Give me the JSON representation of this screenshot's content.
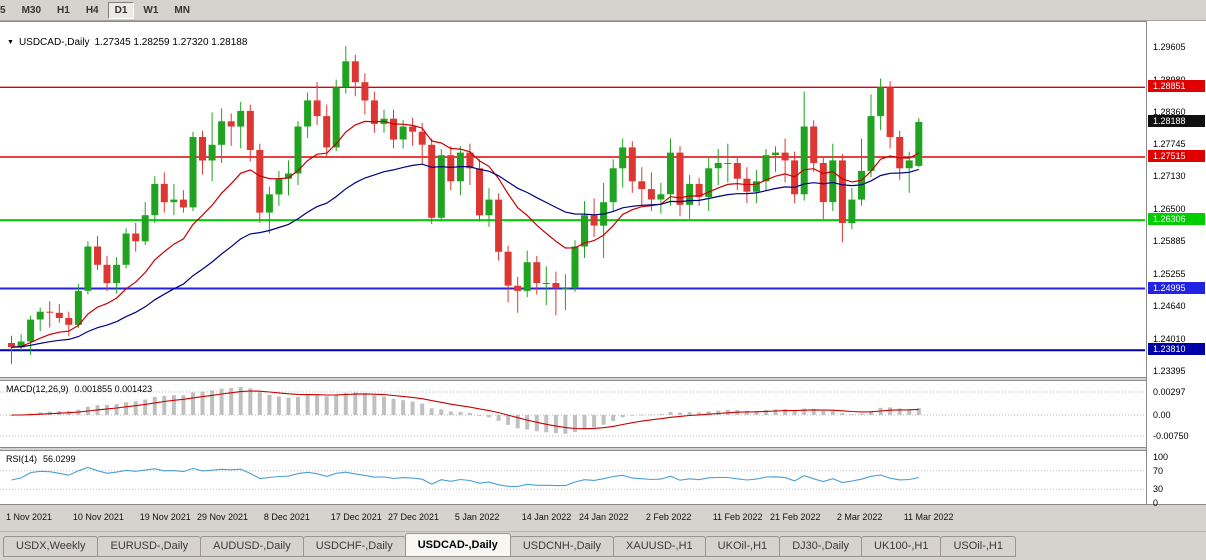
{
  "toolbar": {
    "items": [
      {
        "label": "5",
        "active": false
      },
      {
        "label": "M30",
        "active": false
      },
      {
        "label": "H1",
        "active": false
      },
      {
        "label": "H4",
        "active": false
      },
      {
        "label": "D1",
        "active": true
      },
      {
        "label": "W1",
        "active": false
      },
      {
        "label": "MN",
        "active": false
      }
    ]
  },
  "chart": {
    "symbol_label": "USDCAD-,Daily",
    "ohlc_text": "1.27345 1.28259 1.27320 1.28188"
  },
  "chart_data": {
    "type": "candlestick",
    "symbol": "USDCAD-",
    "timeframe": "Daily",
    "ohlc_display": {
      "open": "1.27345",
      "high": "1.28259",
      "low": "1.27320",
      "close": "1.28188"
    },
    "colors": {
      "bull": "#20a320",
      "bear": "#dc3732",
      "background": "#ffffff"
    },
    "y_axis_ticks": [
      "1.29605",
      "1.28980",
      "1.28360",
      "1.27745",
      "1.27130",
      "1.26500",
      "1.25885",
      "1.25255",
      "1.24640",
      "1.24010",
      "1.23395"
    ],
    "price_lines": [
      {
        "price": 1.28851,
        "label": "1.28851",
        "color": "#e00000",
        "width": 1.4
      },
      {
        "price": 1.27515,
        "label": "1.27515",
        "color": "#e00000",
        "width": 1.4
      },
      {
        "price": 1.26306,
        "label": "1.26306",
        "color": "#00ce00",
        "width": 2
      },
      {
        "price": 1.24995,
        "label": "1.24995",
        "color": "#2323e6",
        "width": 2
      },
      {
        "price": 1.2381,
        "label": "1.23810",
        "color": "#0000a8",
        "width": 2
      }
    ],
    "current_price": {
      "value": 1.28188,
      "label": "1.28188",
      "color": "#101010"
    },
    "moving_averages": {
      "fast": {
        "period": 13,
        "color": "#c80000"
      },
      "slow": {
        "period": 34,
        "color": "#000080"
      }
    },
    "candles": [
      [
        1.2395,
        1.2409,
        1.2355,
        1.2387
      ],
      [
        1.2387,
        1.2412,
        1.2378,
        1.2398
      ],
      [
        1.2398,
        1.2447,
        1.2372,
        1.244
      ],
      [
        1.244,
        1.2463,
        1.2418,
        1.2455
      ],
      [
        1.2455,
        1.2475,
        1.2425,
        1.2453
      ],
      [
        1.2453,
        1.247,
        1.2434,
        1.2443
      ],
      [
        1.2443,
        1.2455,
        1.2408,
        1.243
      ],
      [
        1.243,
        1.2508,
        1.2424,
        1.2495
      ],
      [
        1.2495,
        1.259,
        1.2488,
        1.258
      ],
      [
        1.258,
        1.26,
        1.2535,
        1.2545
      ],
      [
        1.2545,
        1.2562,
        1.2495,
        1.251
      ],
      [
        1.251,
        1.256,
        1.249,
        1.2545
      ],
      [
        1.2545,
        1.2615,
        1.2538,
        1.2605
      ],
      [
        1.2605,
        1.2625,
        1.257,
        1.259
      ],
      [
        1.259,
        1.2665,
        1.2583,
        1.264
      ],
      [
        1.264,
        1.2715,
        1.2625,
        1.27
      ],
      [
        1.27,
        1.2722,
        1.2645,
        1.2665
      ],
      [
        1.2665,
        1.27,
        1.264,
        1.267
      ],
      [
        1.267,
        1.2688,
        1.2645,
        1.2655
      ],
      [
        1.2655,
        1.28,
        1.2648,
        1.279
      ],
      [
        1.279,
        1.2802,
        1.2718,
        1.2745
      ],
      [
        1.2745,
        1.2837,
        1.2705,
        1.2775
      ],
      [
        1.2775,
        1.2845,
        1.274,
        1.282
      ],
      [
        1.282,
        1.2835,
        1.2773,
        1.281
      ],
      [
        1.281,
        1.2857,
        1.2768,
        1.284
      ],
      [
        1.284,
        1.2852,
        1.2743,
        1.2765
      ],
      [
        1.2765,
        1.2777,
        1.2625,
        1.2645
      ],
      [
        1.2645,
        1.2695,
        1.2605,
        1.268
      ],
      [
        1.268,
        1.2725,
        1.2658,
        1.271
      ],
      [
        1.271,
        1.2745,
        1.2678,
        1.272
      ],
      [
        1.272,
        1.282,
        1.2698,
        1.281
      ],
      [
        1.281,
        1.2875,
        1.2788,
        1.286
      ],
      [
        1.286,
        1.2895,
        1.2813,
        1.283
      ],
      [
        1.283,
        1.2852,
        1.2753,
        1.277
      ],
      [
        1.277,
        1.29,
        1.2763,
        1.2885
      ],
      [
        1.2885,
        1.2964,
        1.2873,
        1.2935
      ],
      [
        1.2935,
        1.2947,
        1.2868,
        1.2895
      ],
      [
        1.2895,
        1.2912,
        1.2833,
        1.286
      ],
      [
        1.286,
        1.2877,
        1.2798,
        1.2815
      ],
      [
        1.2815,
        1.2842,
        1.2798,
        1.2825
      ],
      [
        1.2825,
        1.2842,
        1.2768,
        1.2785
      ],
      [
        1.2785,
        1.2822,
        1.2768,
        1.281
      ],
      [
        1.281,
        1.2827,
        1.2773,
        1.28
      ],
      [
        1.28,
        1.2817,
        1.2738,
        1.2775
      ],
      [
        1.2775,
        1.2787,
        1.2623,
        1.2635
      ],
      [
        1.2635,
        1.2767,
        1.2628,
        1.2755
      ],
      [
        1.2755,
        1.2772,
        1.2688,
        1.2705
      ],
      [
        1.2705,
        1.2772,
        1.2678,
        1.276
      ],
      [
        1.276,
        1.2777,
        1.2698,
        1.273
      ],
      [
        1.273,
        1.2747,
        1.2628,
        1.264
      ],
      [
        1.264,
        1.2692,
        1.2618,
        1.267
      ],
      [
        1.267,
        1.2682,
        1.2553,
        1.257
      ],
      [
        1.257,
        1.2582,
        1.2473,
        1.2505
      ],
      [
        1.2505,
        1.2522,
        1.2453,
        1.2495
      ],
      [
        1.2495,
        1.2572,
        1.2483,
        1.255
      ],
      [
        1.255,
        1.2562,
        1.2488,
        1.251
      ],
      [
        1.251,
        1.2542,
        1.2468,
        1.251
      ],
      [
        1.251,
        1.2532,
        1.2448,
        1.25
      ],
      [
        1.25,
        1.2527,
        1.2458,
        1.25
      ],
      [
        1.25,
        1.2592,
        1.2493,
        1.258
      ],
      [
        1.258,
        1.2667,
        1.2558,
        1.264
      ],
      [
        1.264,
        1.2672,
        1.2598,
        1.262
      ],
      [
        1.262,
        1.2702,
        1.2558,
        1.2665
      ],
      [
        1.2665,
        1.2747,
        1.2648,
        1.273
      ],
      [
        1.273,
        1.2787,
        1.2693,
        1.277
      ],
      [
        1.277,
        1.2782,
        1.2683,
        1.2705
      ],
      [
        1.2705,
        1.2732,
        1.2658,
        1.269
      ],
      [
        1.269,
        1.2722,
        1.2648,
        1.267
      ],
      [
        1.267,
        1.2702,
        1.2643,
        1.268
      ],
      [
        1.268,
        1.2787,
        1.2658,
        1.276
      ],
      [
        1.276,
        1.2772,
        1.2638,
        1.266
      ],
      [
        1.266,
        1.2717,
        1.2633,
        1.27
      ],
      [
        1.27,
        1.2712,
        1.2658,
        1.2675
      ],
      [
        1.2675,
        1.2752,
        1.2648,
        1.273
      ],
      [
        1.273,
        1.2767,
        1.2698,
        1.274
      ],
      [
        1.274,
        1.2777,
        1.2703,
        1.274
      ],
      [
        1.274,
        1.2752,
        1.2688,
        1.271
      ],
      [
        1.271,
        1.2732,
        1.2663,
        1.2685
      ],
      [
        1.2685,
        1.2727,
        1.2663,
        1.2705
      ],
      [
        1.2705,
        1.2767,
        1.2688,
        1.2755
      ],
      [
        1.2755,
        1.2772,
        1.2723,
        1.276
      ],
      [
        1.276,
        1.2787,
        1.2703,
        1.2745
      ],
      [
        1.2745,
        1.2762,
        1.2663,
        1.268
      ],
      [
        1.268,
        1.2877,
        1.2668,
        1.281
      ],
      [
        1.281,
        1.2822,
        1.2723,
        1.274
      ],
      [
        1.274,
        1.2752,
        1.2633,
        1.2665
      ],
      [
        1.2665,
        1.2777,
        1.2648,
        1.2745
      ],
      [
        1.2745,
        1.2757,
        1.2588,
        1.2625
      ],
      [
        1.2625,
        1.2692,
        1.2613,
        1.267
      ],
      [
        1.267,
        1.2787,
        1.2658,
        1.2725
      ],
      [
        1.2725,
        1.2872,
        1.2713,
        1.283
      ],
      [
        1.283,
        1.2902,
        1.2803,
        1.2885
      ],
      [
        1.2885,
        1.2897,
        1.2768,
        1.279
      ],
      [
        1.279,
        1.2802,
        1.2708,
        1.273
      ],
      [
        1.273,
        1.2762,
        1.2683,
        1.2745
      ],
      [
        1.27345,
        1.28259,
        1.2732,
        1.28188
      ]
    ],
    "date_ticks": [
      {
        "label": "1 Nov 2021",
        "i": 0
      },
      {
        "label": "10 Nov 2021",
        "i": 7
      },
      {
        "label": "19 Nov 2021",
        "i": 14
      },
      {
        "label": "29 Nov 2021",
        "i": 20
      },
      {
        "label": "8 Dec 2021",
        "i": 27
      },
      {
        "label": "17 Dec 2021",
        "i": 34
      },
      {
        "label": "27 Dec 2021",
        "i": 40
      },
      {
        "label": "5 Jan 2022",
        "i": 47
      },
      {
        "label": "14 Jan 2022",
        "i": 54
      },
      {
        "label": "24 Jan 2022",
        "i": 60
      },
      {
        "label": "2 Feb 2022",
        "i": 67
      },
      {
        "label": "11 Feb 2022",
        "i": 74
      },
      {
        "label": "21 Feb 2022",
        "i": 80
      },
      {
        "label": "2 Mar 2022",
        "i": 87
      },
      {
        "label": "11 Mar 2022",
        "i": 94
      }
    ],
    "macd": {
      "name": "MACD(12,26,9)",
      "values_text": "0.001855 0.001423",
      "fast": 12,
      "slow": 26,
      "signal": 9,
      "scale_labels": [
        "0.00297",
        "0.00",
        "-0.00750"
      ],
      "bar_color": "#c0c0c0",
      "signal_color": "#c80000"
    },
    "rsi": {
      "name": "RSI(14)",
      "value_text": "56.0299",
      "period": 14,
      "levels": [
        100,
        70,
        30,
        0
      ],
      "color": "#4c9fd6"
    }
  },
  "tabs": {
    "items": [
      "USDX,Weekly",
      "EURUSD-,Daily",
      "AUDUSD-,Daily",
      "USDCHF-,Daily",
      "USDCAD-,Daily",
      "USDCNH-,Daily",
      "XAUUSD-,H1",
      "UKOil-,H1",
      "DJ30-,Daily",
      "UK100-,H1",
      "USOil-,H1"
    ],
    "active_index": 4
  }
}
